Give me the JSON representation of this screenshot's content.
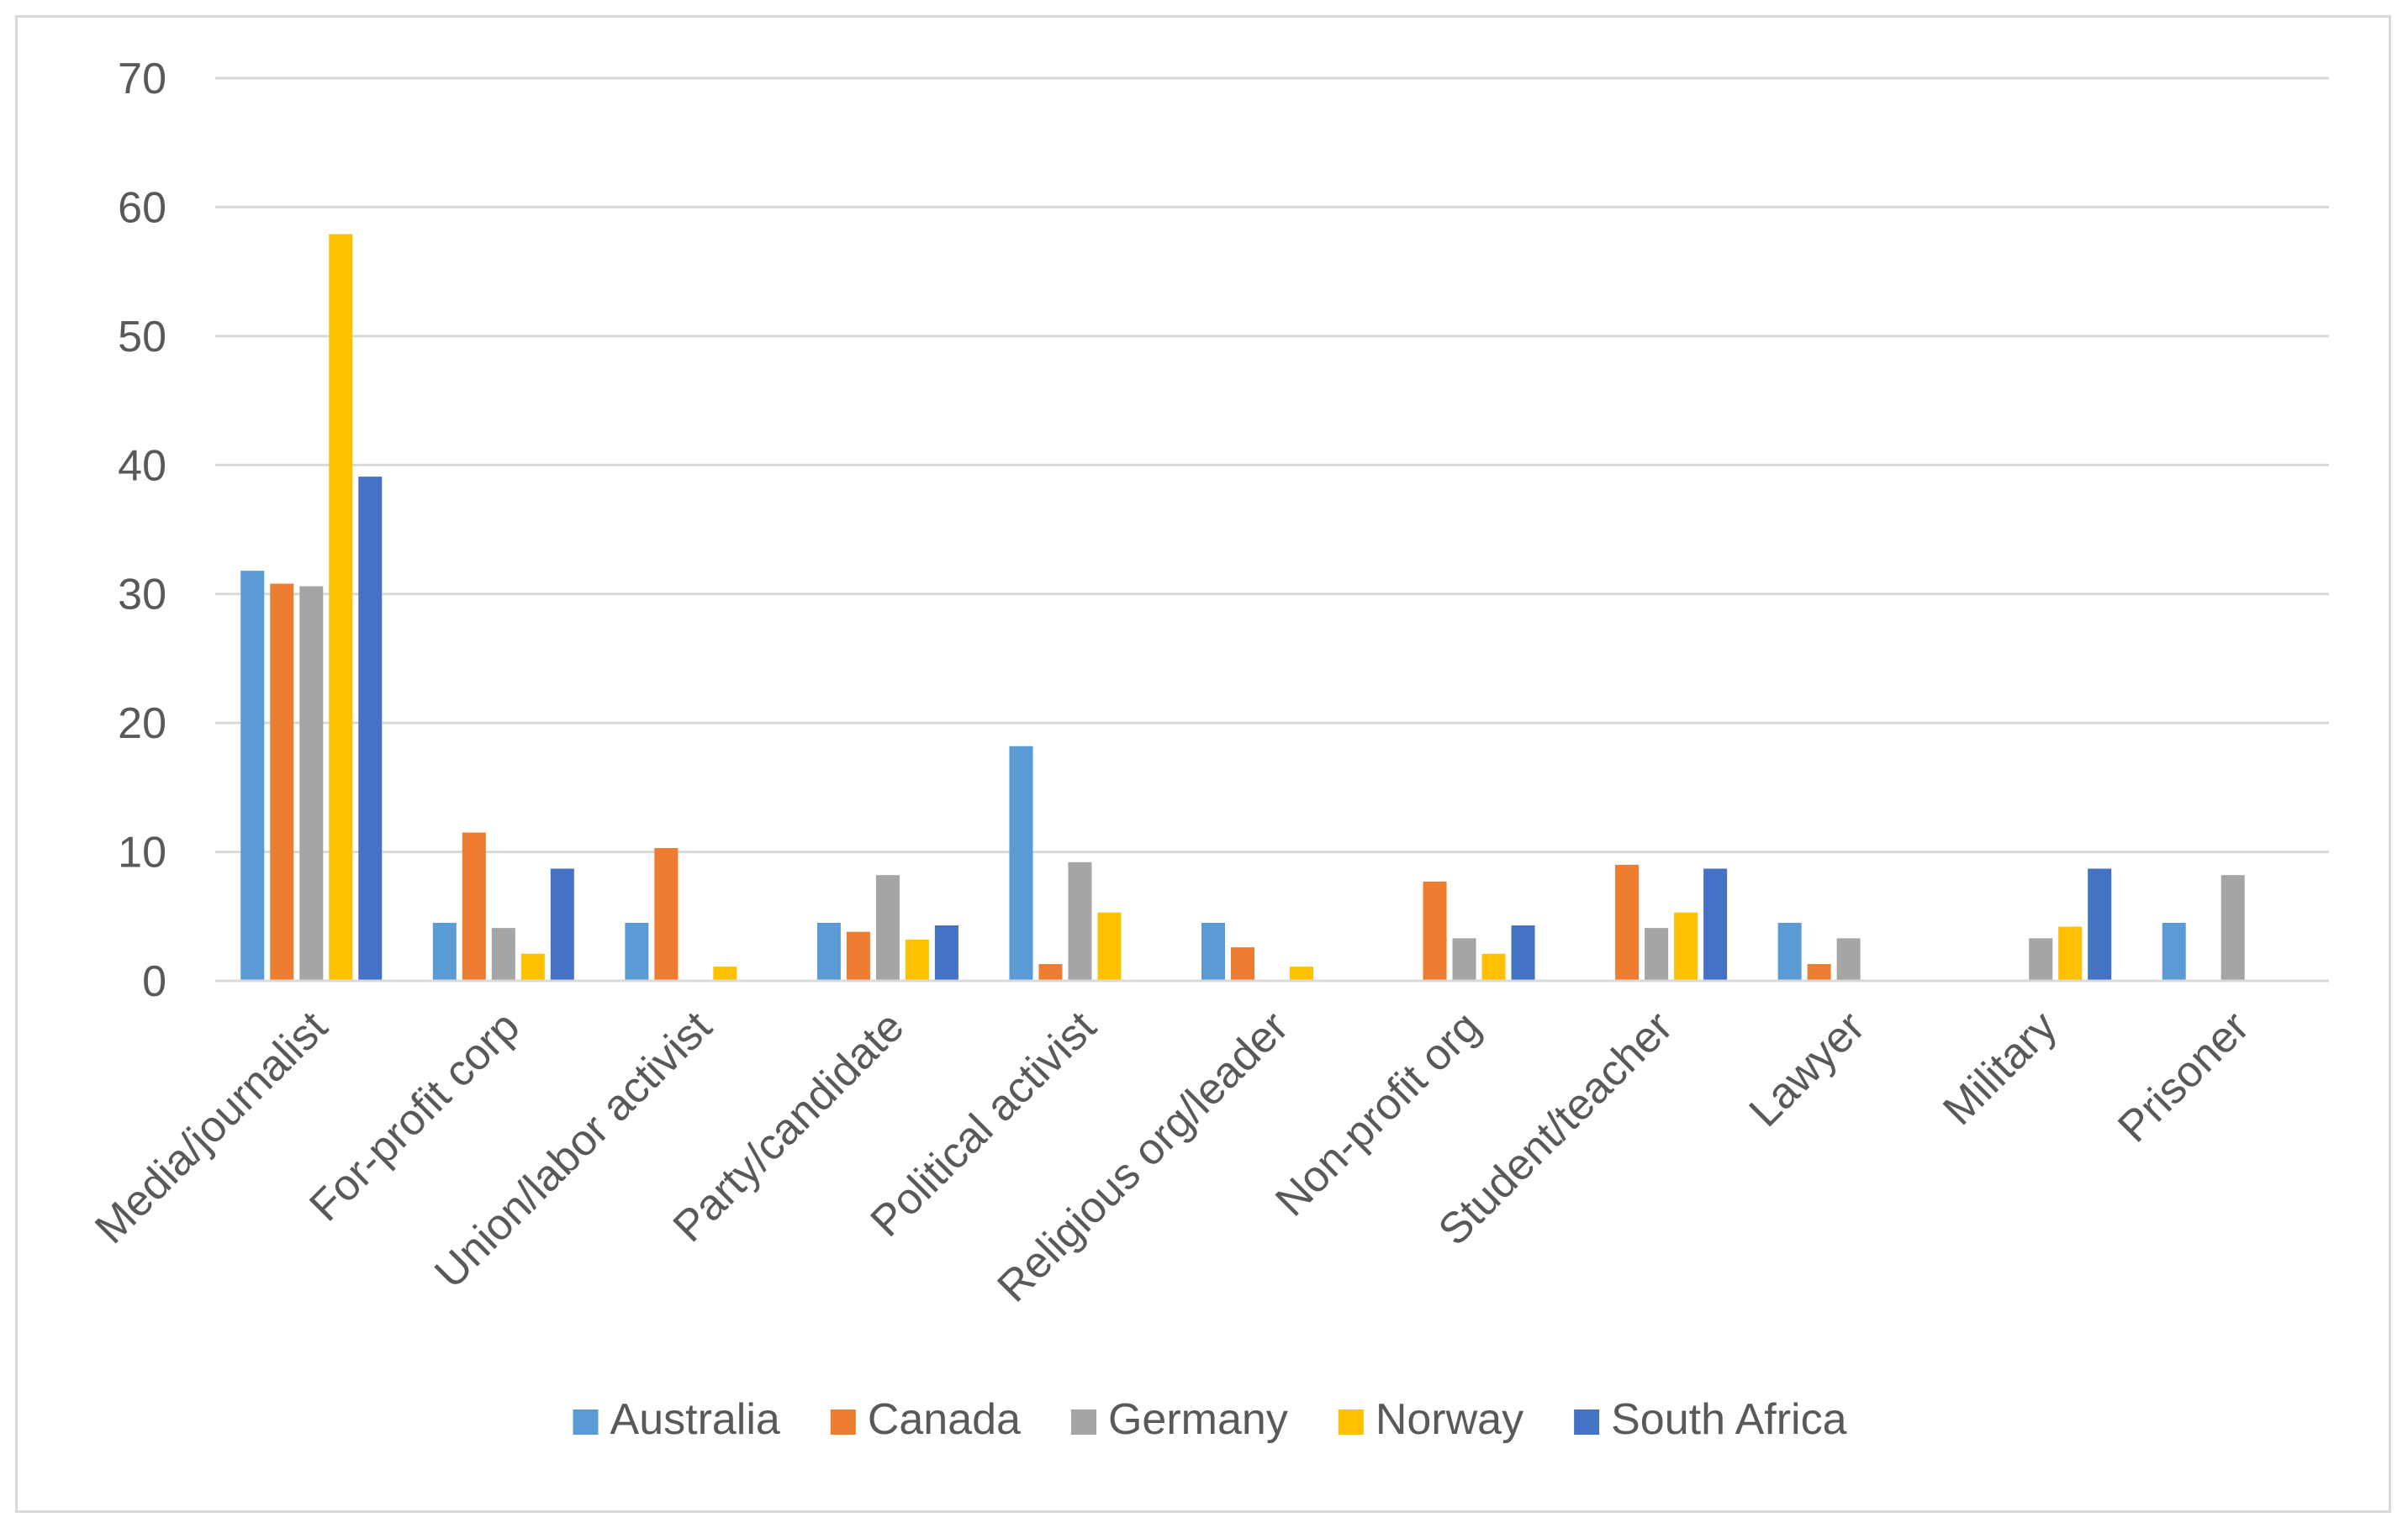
{
  "chart_data": {
    "type": "bar",
    "title": "",
    "xlabel": "",
    "ylabel": "",
    "ylim": [
      0,
      70
    ],
    "yticks": [
      0,
      10,
      20,
      30,
      40,
      50,
      60,
      70
    ],
    "grid": "horizontal",
    "legend_position": "bottom",
    "categories": [
      "Media/journalist",
      "For-profit corp",
      "Union/labor activist",
      "Party/candidate",
      "Political activist",
      "Religious org/leader",
      "Non-profit org",
      "Student/teacher",
      "Lawyer",
      "Military",
      "Prisoner"
    ],
    "series": [
      {
        "name": "Australia",
        "color": "#5b9bd5",
        "values": [
          31.8,
          4.5,
          4.5,
          4.5,
          18.2,
          4.5,
          0,
          0,
          4.5,
          0,
          4.5
        ]
      },
      {
        "name": "Canada",
        "color": "#ed7d31",
        "values": [
          30.8,
          11.5,
          10.3,
          3.8,
          1.3,
          2.6,
          7.7,
          9.0,
          1.3,
          0,
          0
        ]
      },
      {
        "name": "Germany",
        "color": "#a5a5a5",
        "values": [
          30.6,
          4.1,
          0,
          8.2,
          9.2,
          0,
          3.3,
          4.1,
          3.3,
          3.3,
          8.2
        ]
      },
      {
        "name": "Norway",
        "color": "#ffc000",
        "values": [
          57.9,
          2.1,
          1.1,
          3.2,
          5.3,
          1.1,
          2.1,
          5.3,
          0,
          4.2,
          0
        ]
      },
      {
        "name": "South Africa",
        "color": "#4472c4",
        "values": [
          39.1,
          8.7,
          0,
          4.3,
          0,
          0,
          4.3,
          8.7,
          0,
          8.7,
          0
        ]
      }
    ]
  }
}
